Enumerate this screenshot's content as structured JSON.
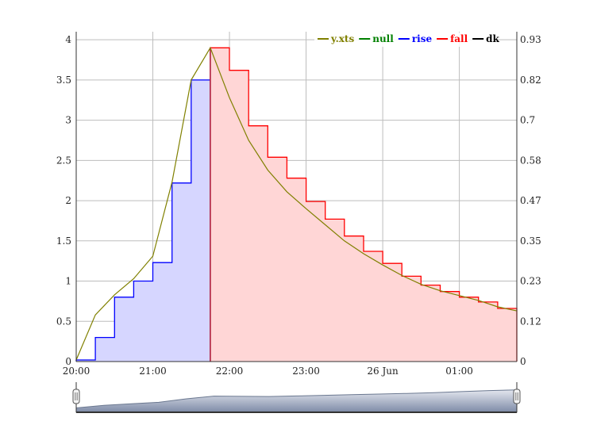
{
  "chart_data": {
    "type": "area",
    "title": "",
    "xlabel": "",
    "ylabel": "",
    "x_axis": {
      "type": "time",
      "range": [
        "20:00",
        "01:45"
      ],
      "tick_labels": [
        "20:00",
        "21:00",
        "22:00",
        "23:00",
        "26 Jun",
        "01:00"
      ],
      "tick_hours": [
        0,
        1,
        2,
        3,
        4,
        5
      ]
    },
    "y_left": {
      "range": [
        0,
        4.1
      ],
      "ticks": [
        0,
        0.5,
        1,
        1.5,
        2,
        2.5,
        3,
        3.5,
        4
      ],
      "tick_labels": [
        "0",
        "0.5",
        "1",
        "1.5",
        "2",
        "2.5",
        "3",
        "3.5",
        "4"
      ]
    },
    "y_right": {
      "tick_labels": [
        "0",
        "0.12",
        "0.23",
        "0.35",
        "0.47",
        "0.58",
        "0.7",
        "0.82",
        "0.93"
      ]
    },
    "grid": true,
    "legend_position": "top-right",
    "legend": [
      {
        "name": "y.xts",
        "color": "#808000"
      },
      {
        "name": "null",
        "color": "#008000"
      },
      {
        "name": "rise",
        "color": "#0000ff"
      },
      {
        "name": "fall",
        "color": "#ff0000"
      },
      {
        "name": "dk",
        "color": "#000000"
      }
    ],
    "series": [
      {
        "name": "y.xts",
        "style": "line",
        "color": "#808000",
        "x_hours": [
          0,
          0.25,
          0.5,
          0.75,
          1,
          1.25,
          1.5,
          1.75,
          2,
          2.25,
          2.5,
          2.75,
          3,
          3.25,
          3.5,
          3.75,
          4,
          4.25,
          4.5,
          4.75,
          5,
          5.25,
          5.5,
          5.75
        ],
        "values": [
          0.02,
          0.58,
          0.83,
          1.03,
          1.31,
          2.23,
          3.5,
          3.9,
          3.28,
          2.75,
          2.38,
          2.11,
          1.9,
          1.7,
          1.5,
          1.34,
          1.2,
          1.07,
          0.96,
          0.88,
          0.82,
          0.76,
          0.68,
          0.63
        ]
      },
      {
        "name": "rise",
        "style": "step-area",
        "color": "#0000ff",
        "fill": "#d6d6ff",
        "x_hours": [
          0,
          0.25,
          0.5,
          0.75,
          1,
          1.25,
          1.5
        ],
        "values": [
          0.02,
          0.3,
          0.8,
          1.0,
          1.23,
          2.22,
          3.5
        ]
      },
      {
        "name": "fall",
        "style": "step-area",
        "color": "#ff0000",
        "fill": "#ffd6d6",
        "x_hours": [
          1.75,
          2,
          2.25,
          2.5,
          2.75,
          3,
          3.25,
          3.5,
          3.75,
          4,
          4.25,
          4.5,
          4.75,
          5,
          5.25,
          5.5,
          5.75
        ],
        "values": [
          3.9,
          3.62,
          2.93,
          2.54,
          2.28,
          1.99,
          1.77,
          1.56,
          1.37,
          1.22,
          1.06,
          0.95,
          0.87,
          0.8,
          0.74,
          0.66,
          0.6
        ]
      }
    ],
    "marker_x_hours": 1.75,
    "range_selector": {
      "handle_left_hours": 0,
      "handle_right_hours": 5.75,
      "overview_values": [
        0.06,
        0.18,
        0.26,
        0.33,
        0.5,
        0.63,
        0.62,
        0.61,
        0.64,
        0.67,
        0.7,
        0.73,
        0.76,
        0.8,
        0.85,
        0.9,
        0.93
      ]
    }
  }
}
